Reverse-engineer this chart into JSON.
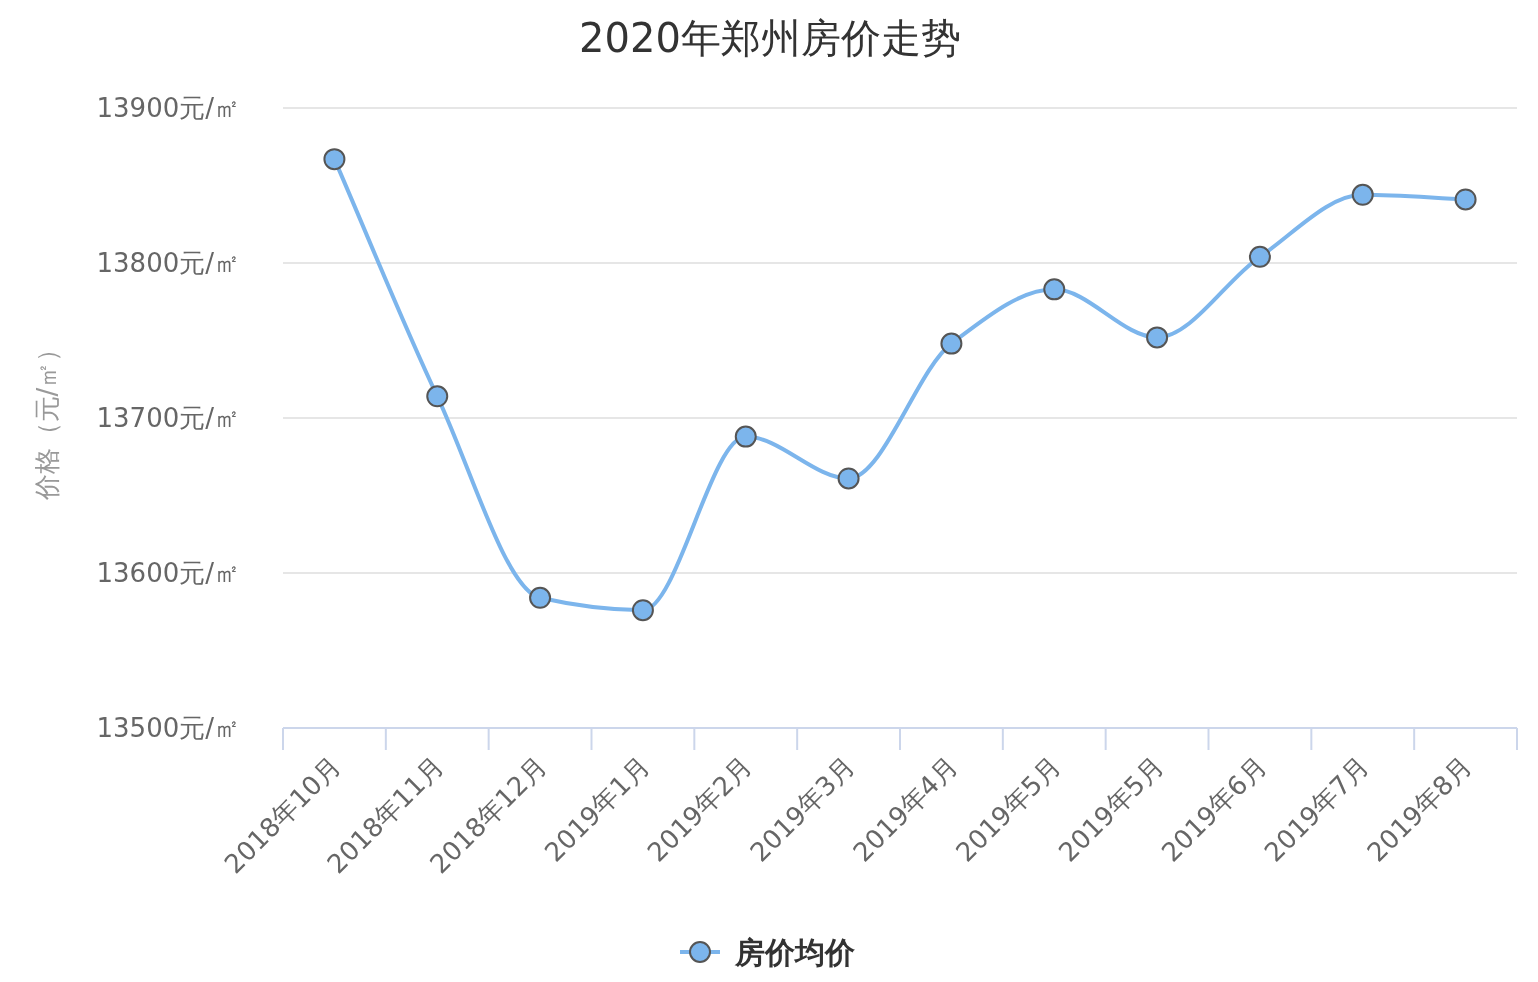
{
  "chart_data": {
    "type": "line",
    "title": "2020年郑州房价走势",
    "ylabel": "价格（元/㎡）",
    "categories": [
      "2018年10月",
      "2018年11月",
      "2018年12月",
      "2019年1月",
      "2019年2月",
      "2019年3月",
      "2019年4月",
      "2019年5月",
      "2019年5月",
      "2019年6月",
      "2019年7月",
      "2019年8月"
    ],
    "series": [
      {
        "name": "房价均价",
        "color": "#7cb5ec",
        "values": [
          13867,
          13714,
          13584,
          13576,
          13688,
          13661,
          13748,
          13783,
          13752,
          13804,
          13844,
          13841
        ]
      }
    ],
    "ylim": [
      13500,
      13900
    ],
    "yticks": [
      {
        "value": 13500,
        "label": "13500元/㎡"
      },
      {
        "value": 13600,
        "label": "13600元/㎡"
      },
      {
        "value": 13700,
        "label": "13700元/㎡"
      },
      {
        "value": 13800,
        "label": "13800元/㎡"
      },
      {
        "value": 13900,
        "label": "13900元/㎡"
      }
    ],
    "grid": "y",
    "legend": "bottom",
    "marker": "circle",
    "line_style": "solid"
  }
}
